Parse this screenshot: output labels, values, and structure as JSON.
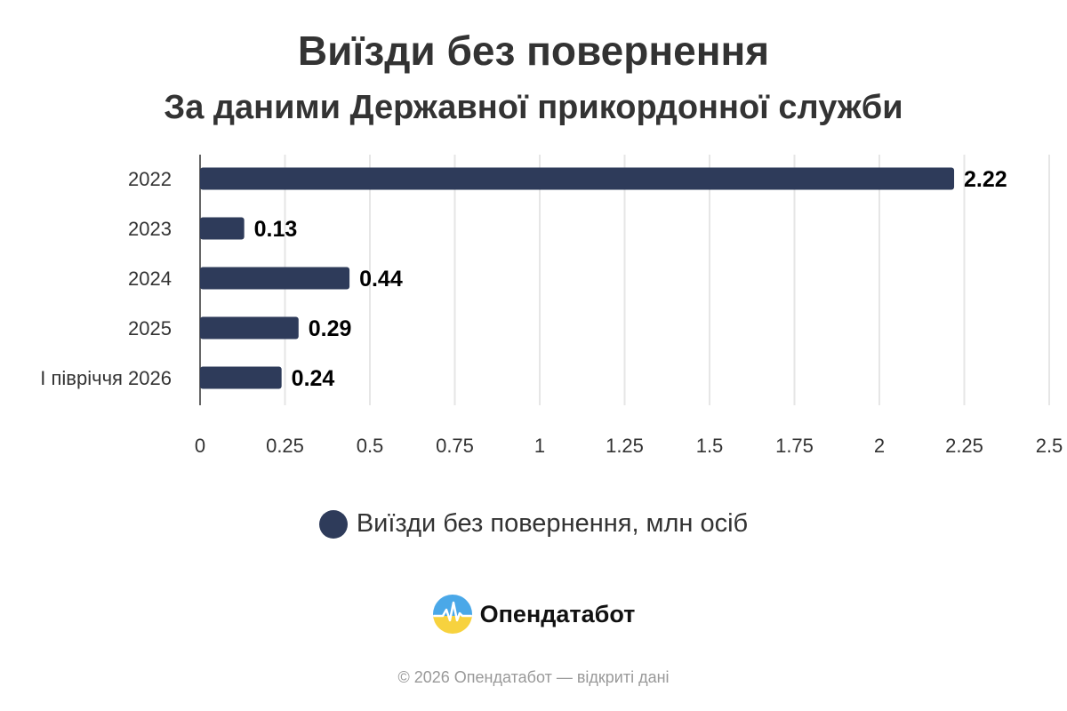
{
  "header": {
    "title": "Виїзди без повернення",
    "subtitle": "За даними Державної прикордонної служби"
  },
  "chart_data": {
    "type": "bar",
    "orientation": "horizontal",
    "categories": [
      "2022",
      "2023",
      "2024",
      "2025",
      "I півріччя 2026"
    ],
    "series": [
      {
        "name": "Виїзди без повернення, млн осіб",
        "values": [
          2.22,
          0.13,
          0.44,
          0.29,
          0.24
        ],
        "color": "#2e3b5a"
      }
    ],
    "data_labels": [
      "2.22",
      "0.13",
      "0.44",
      "0.29",
      "0.24"
    ],
    "xlim": [
      0,
      2.5
    ],
    "x_ticks": [
      0,
      0.25,
      0.5,
      0.75,
      1,
      1.25,
      1.5,
      1.75,
      2,
      2.25,
      2.5
    ],
    "x_tick_labels": [
      "0",
      "0.25",
      "0.5",
      "0.75",
      "1",
      "1.25",
      "1.5",
      "1.75",
      "2",
      "2.25",
      "2.5"
    ],
    "grid": true,
    "grid_color": "#e6e6e6",
    "legend_position": "bottom"
  },
  "legend": {
    "label": "Виїзди без повернення, млн осіб"
  },
  "brand": {
    "name": "Опендатабот",
    "logo_icon": "opendatabot-logo-icon"
  },
  "footer": {
    "text": "© 2026 Опендатабот — відкриті дані"
  }
}
